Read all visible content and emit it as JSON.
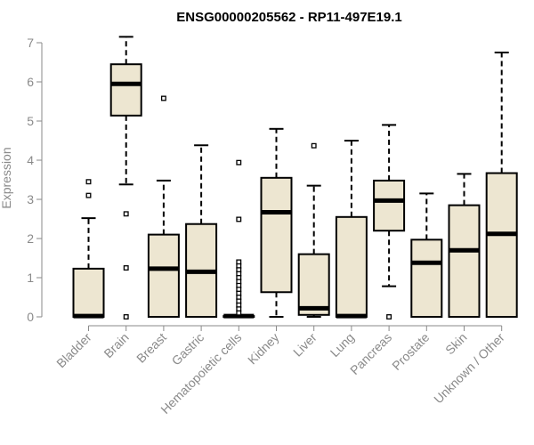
{
  "chart_data": {
    "type": "boxplot",
    "title": "ENSG00000205562 - RP11-497E19.1",
    "ylabel": "Expression",
    "xlabel": "",
    "ylim": [
      0,
      7.2
    ],
    "yticks": [
      0,
      1,
      2,
      3,
      4,
      5,
      6,
      7
    ],
    "grid": false,
    "box_fill": "#ede6d1",
    "box_stroke": "#000000",
    "axis_color": "#8a8a8a",
    "categories": [
      "Bladder",
      "Brain",
      "Breast",
      "Gastric",
      "Hematopoietic cells",
      "Kidney",
      "Liver",
      "Lung",
      "Pancreas",
      "Prostate",
      "Skin",
      "Unknown / Other"
    ],
    "boxes": [
      {
        "category": "Bladder",
        "whisker_low": 0,
        "q1": 0,
        "median": 0.02,
        "q3": 1.23,
        "whisker_high": 2.52,
        "outliers": [
          3.1,
          3.45
        ]
      },
      {
        "category": "Brain",
        "whisker_low": 3.38,
        "q1": 5.14,
        "median": 5.95,
        "q3": 6.45,
        "whisker_high": 7.15,
        "outliers": [
          2.63,
          1.25,
          0
        ]
      },
      {
        "category": "Breast",
        "whisker_low": 0,
        "q1": 0,
        "median": 1.23,
        "q3": 2.1,
        "whisker_high": 3.48,
        "outliers": [
          5.58
        ]
      },
      {
        "category": "Gastric",
        "whisker_low": 0,
        "q1": 0,
        "median": 1.15,
        "q3": 2.37,
        "whisker_high": 4.38,
        "outliers": []
      },
      {
        "category": "Hematopoietic cells",
        "whisker_low": 0,
        "q1": 0,
        "median": 0.02,
        "q3": 0.02,
        "whisker_high": 0.02,
        "outliers": [
          3.94,
          2.49,
          1.4,
          1.3,
          1.2,
          1.1,
          1.0,
          0.9,
          0.8,
          0.7,
          0.6,
          0.5,
          0.4,
          0.3,
          0.2,
          0.1
        ]
      },
      {
        "category": "Kidney",
        "whisker_low": 0,
        "q1": 0.63,
        "median": 2.67,
        "q3": 3.55,
        "whisker_high": 4.8,
        "outliers": []
      },
      {
        "category": "Liver",
        "whisker_low": 0,
        "q1": 0.05,
        "median": 0.22,
        "q3": 1.6,
        "whisker_high": 3.35,
        "outliers": [
          4.37
        ]
      },
      {
        "category": "Lung",
        "whisker_low": 0,
        "q1": 0,
        "median": 0.02,
        "q3": 2.55,
        "whisker_high": 4.5,
        "outliers": []
      },
      {
        "category": "Pancreas",
        "whisker_low": 0.78,
        "q1": 2.2,
        "median": 2.97,
        "q3": 3.48,
        "whisker_high": 4.9,
        "outliers": [
          0
        ]
      },
      {
        "category": "Prostate",
        "whisker_low": 0,
        "q1": 0,
        "median": 1.38,
        "q3": 1.97,
        "whisker_high": 3.15,
        "outliers": []
      },
      {
        "category": "Skin",
        "whisker_low": 0,
        "q1": 0,
        "median": 1.7,
        "q3": 2.85,
        "whisker_high": 3.65,
        "outliers": []
      },
      {
        "category": "Unknown / Other",
        "whisker_low": 0,
        "q1": 0,
        "median": 2.12,
        "q3": 3.67,
        "whisker_high": 6.75,
        "outliers": []
      }
    ]
  }
}
